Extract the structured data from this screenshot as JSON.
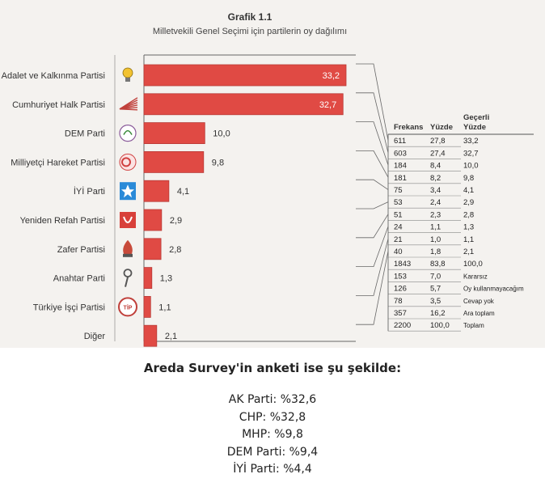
{
  "chart_data": {
    "type": "bar",
    "orientation": "horizontal",
    "title": "Grafik 1.1",
    "subtitle": "Milletvekili Genel Seçimi için partilerin oy dağılımı",
    "categories": [
      "Adalet ve Kalkınma Partisi",
      "Cumhuriyet Halk Partisi",
      "DEM Parti",
      "Milliyetçi Hareket Partisi",
      "İYİ Parti",
      "Yeniden Refah Partisi",
      "Zafer Partisi",
      "Anahtar Parti",
      "Türkiye İşçi Partisi",
      "Diğer"
    ],
    "values": [
      33.2,
      32.7,
      10.0,
      9.8,
      4.1,
      2.9,
      2.8,
      1.3,
      1.1,
      2.1
    ],
    "value_labels": [
      "33,2",
      "32,7",
      "10,0",
      "9,8",
      "4,1",
      "2,9",
      "2,8",
      "1,3",
      "1,1",
      "2,1"
    ],
    "icons": [
      "bulb-icon",
      "ray-icon",
      "dem-logo-icon",
      "crescent-icon",
      "star-icon",
      "refah-logo-icon",
      "flame-icon",
      "key-icon",
      "tip-logo-icon",
      ""
    ],
    "bar_color": "#e04a44",
    "xlim": [
      0,
      35
    ],
    "table": {
      "headers": [
        "Frekans",
        "Yüzde",
        "Geçerli Yüzde"
      ],
      "rows": [
        [
          "611",
          "27,8",
          "33,2"
        ],
        [
          "603",
          "27,4",
          "32,7"
        ],
        [
          "184",
          "8,4",
          "10,0"
        ],
        [
          "181",
          "8,2",
          "9,8"
        ],
        [
          "75",
          "3,4",
          "4,1"
        ],
        [
          "53",
          "2,4",
          "2,9"
        ],
        [
          "51",
          "2,3",
          "2,8"
        ],
        [
          "24",
          "1,1",
          "1,3"
        ],
        [
          "21",
          "1,0",
          "1,1"
        ],
        [
          "40",
          "1,8",
          "2,1"
        ],
        [
          "1843",
          "83,8",
          "100,0"
        ],
        [
          "153",
          "7,0",
          "Kararsız"
        ],
        [
          "126",
          "5,7",
          "Oy kullanmayacağım"
        ],
        [
          "78",
          "3,5",
          "Cevap yok"
        ],
        [
          "357",
          "16,2",
          "Ara toplam"
        ],
        [
          "2200",
          "100,0",
          "Toplam"
        ]
      ]
    }
  },
  "survey": {
    "title": "Areda Survey'in anketi ise şu şekilde:",
    "lines": [
      "AK Parti: %32,6",
      "CHP: %32,8",
      "MHP: %9,8",
      "DEM Parti: %9,4",
      "İYİ Parti: %4,4"
    ]
  }
}
